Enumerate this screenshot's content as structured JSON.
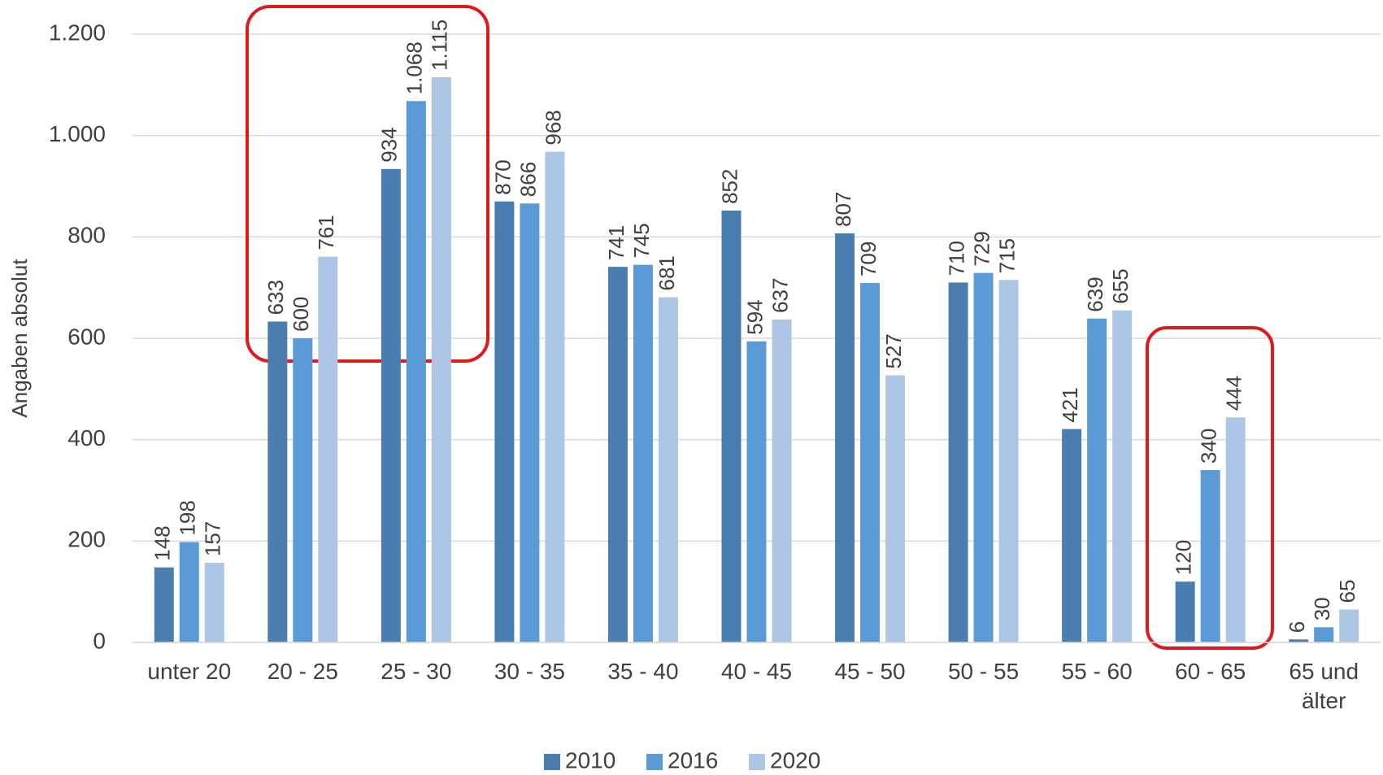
{
  "chart_data": {
    "type": "bar",
    "y_label": "Angaben absolut",
    "categories": [
      "unter 20",
      "20 - 25",
      "25 - 30",
      "30 - 35",
      "35 - 40",
      "40 - 45",
      "45 - 50",
      "50 - 55",
      "55 - 60",
      "60 - 65",
      "65 und älter"
    ],
    "series": [
      {
        "name": "2010",
        "color": "#4a7eb0",
        "values": [
          148,
          633,
          934,
          870,
          741,
          852,
          807,
          710,
          421,
          120,
          6
        ]
      },
      {
        "name": "2016",
        "color": "#5b9bd5",
        "values": [
          198,
          600,
          1068,
          866,
          745,
          594,
          709,
          729,
          639,
          340,
          30
        ],
        "value_labels": [
          "198",
          "600",
          "1.068",
          "866",
          "745",
          "594",
          "709",
          "729",
          "639",
          "340",
          "30"
        ]
      },
      {
        "name": "2020",
        "color": "#adc6e5",
        "values": [
          157,
          761,
          1115,
          968,
          681,
          637,
          527,
          715,
          655,
          444,
          65
        ],
        "value_labels": [
          "157",
          "761",
          "1.115",
          "968",
          "681",
          "637",
          "527",
          "715",
          "655",
          "444",
          "65"
        ]
      }
    ],
    "ylim": [
      0,
      1200
    ],
    "yticks": [
      0,
      200,
      400,
      600,
      800,
      {
        "value": 1000,
        "label": "1.000"
      },
      {
        "value": 1200,
        "label": "1.200"
      }
    ],
    "grid": true,
    "legend": "bottom"
  }
}
